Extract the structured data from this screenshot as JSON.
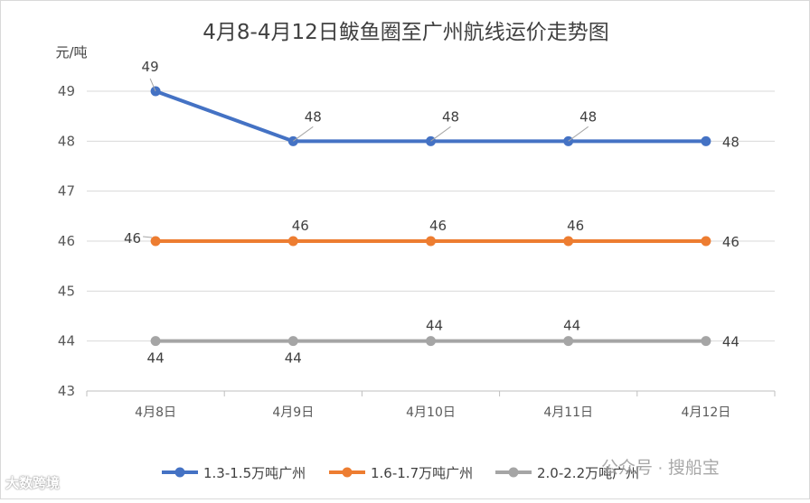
{
  "chart_data": {
    "type": "line",
    "title": "4月8-4月12日鲅鱼圈至广州航线运价走势图",
    "ylabel": "元/吨",
    "xlabel": "",
    "categories": [
      "4月8日",
      "4月9日",
      "4月10日",
      "4月11日",
      "4月12日"
    ],
    "ylim": [
      43,
      49
    ],
    "yticks": [
      "43",
      "44",
      "45",
      "46",
      "47",
      "48",
      "49"
    ],
    "grid": true,
    "legend_position": "bottom",
    "series": [
      {
        "name": "1.3-1.5万吨广州",
        "color": "#4472c4",
        "values": [
          49,
          48,
          48,
          48,
          48
        ]
      },
      {
        "name": "1.6-1.7万吨广州",
        "color": "#ed7d31",
        "values": [
          46,
          46,
          46,
          46,
          46
        ]
      },
      {
        "name": "2.0-2.2万吨广州",
        "color": "#a5a5a5",
        "values": [
          44,
          44,
          44,
          44,
          44
        ]
      }
    ]
  },
  "watermarks": {
    "left": "大数跨境",
    "right": "公众号 · 搜船宝"
  }
}
